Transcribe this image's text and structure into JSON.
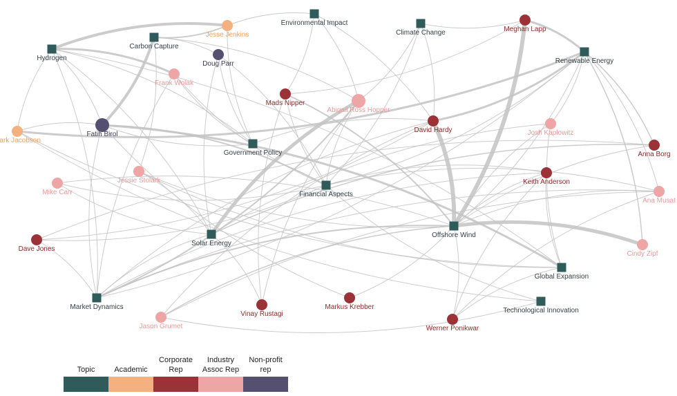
{
  "groups": [
    {
      "label": "Topic",
      "color": "#2f5b5b",
      "nodes": [
        "Environmental Impact",
        "Climate Change",
        "Carbon Capture",
        "Hydrogen",
        "Renewable Energy",
        "Government Policy",
        "Financial Aspects",
        "Offshore Wind",
        "Solar Energy",
        "Global Expansion",
        "Market Dynamics",
        "Technological Innovation"
      ]
    },
    {
      "label": "Academic",
      "color": "#f5b07f",
      "nodes": [
        "Jesse Jenkins",
        "Mark Jacobson"
      ]
    },
    {
      "label": "Corporate Rep",
      "color": "#9b3237",
      "nodes": [
        "Meghan Lapp",
        "Mads Nipper",
        "David Hardy",
        "Anna Borg",
        "Keith Anderson",
        "Dave Jones",
        "Vinay Rustagi",
        "Markus Krebber",
        "Werner Ponikwar"
      ]
    },
    {
      "label": "Industry Assoc Rep",
      "color": "#eea5a5",
      "nodes": [
        "Frank Wolak",
        "Abigail Ross Hopper",
        "Josh Kaplowitz",
        "Jessie Stolark",
        "Mike Carr",
        "Ana Musat",
        "Cindy Zipf",
        "Jason Grumet"
      ]
    },
    {
      "label": "Non-profit rep",
      "color": "#55506f",
      "nodes": [
        "Doug Parr",
        "Fatih Birol"
      ]
    }
  ]
}
